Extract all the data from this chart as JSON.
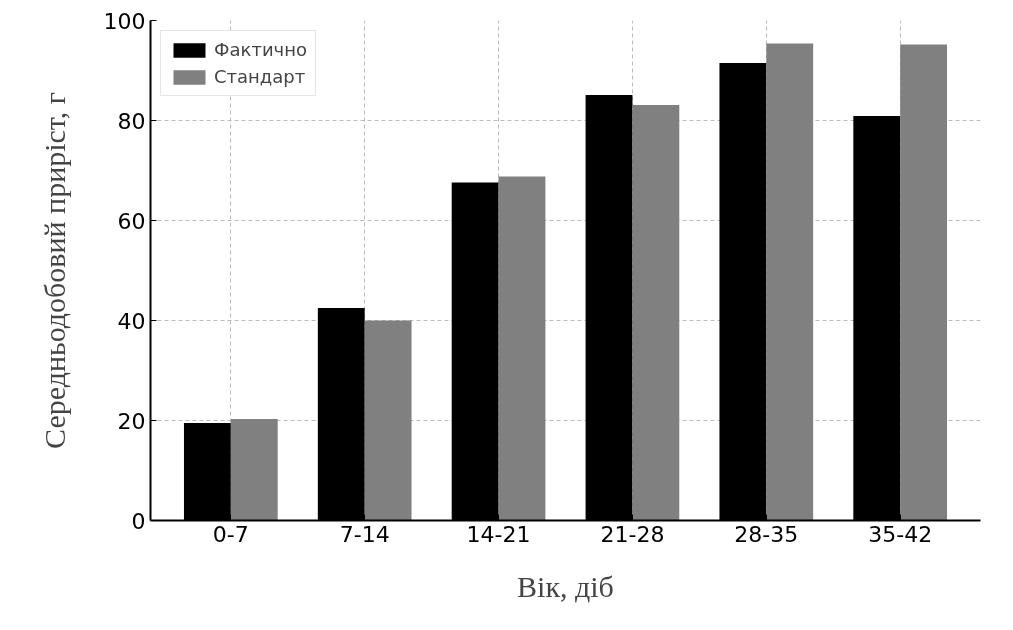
{
  "chart_data": {
    "type": "bar",
    "xlabel": "Вік, діб",
    "ylabel": "Середньодобовий приріст, г",
    "categories": [
      "0-7",
      "7-14",
      "14-21",
      "21-28",
      "28-35",
      "35-42"
    ],
    "series": [
      {
        "name": "Фактично",
        "color": "#000000",
        "values": [
          19.5,
          42.5,
          67.6,
          85.1,
          91.5,
          80.9
        ]
      },
      {
        "name": "Стандарт",
        "color": "#808080",
        "values": [
          20.3,
          40.0,
          68.8,
          83.1,
          95.4,
          95.2
        ]
      }
    ],
    "ylim": [
      0,
      100
    ],
    "yticks": [
      0,
      20,
      40,
      60,
      80,
      100
    ],
    "grid": true,
    "legend": "top left"
  }
}
